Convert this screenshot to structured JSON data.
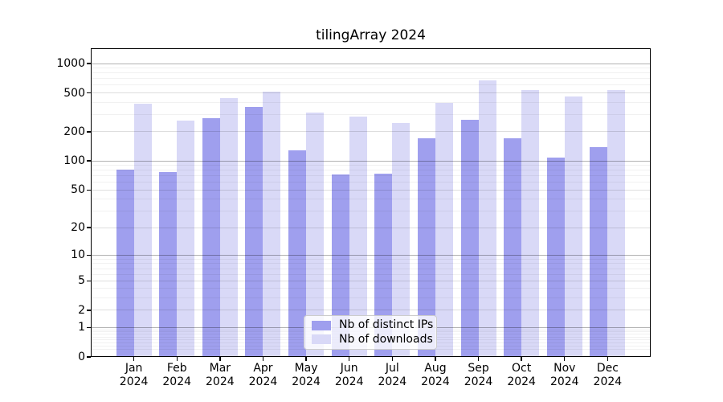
{
  "title": "tilingArray 2024",
  "legend": {
    "items": [
      {
        "label": "Nb of distinct IPs",
        "color_key": "ips"
      },
      {
        "label": "Nb of downloads",
        "color_key": "downloads"
      }
    ]
  },
  "colors": {
    "ips": "#9f9fee",
    "downloads": "#d9d9f7",
    "grid_power10": "rgba(0,0,0,0.30)",
    "grid_major": "rgba(0,0,0,0.13)",
    "grid_minor": "rgba(0,0,0,0.055)",
    "axis": "#000000"
  },
  "y_axis": {
    "ticks": [
      0,
      1,
      2,
      5,
      10,
      20,
      50,
      100,
      200,
      500,
      1000
    ],
    "minor_ticks": [
      0.2,
      0.3,
      0.4,
      0.5,
      0.6,
      0.7,
      0.8,
      0.9,
      3,
      4,
      6,
      7,
      8,
      9,
      30,
      40,
      60,
      70,
      80,
      90,
      300,
      400,
      600,
      700,
      800,
      900
    ]
  },
  "x_axis": {
    "months": [
      "Jan",
      "Feb",
      "Mar",
      "Apr",
      "May",
      "Jun",
      "Jul",
      "Aug",
      "Sep",
      "Oct",
      "Nov",
      "Dec"
    ],
    "year_label": "2024"
  },
  "chart_data": {
    "type": "bar",
    "title": "tilingArray 2024",
    "categories": [
      "Jan 2024",
      "Feb 2024",
      "Mar 2024",
      "Apr 2024",
      "May 2024",
      "Jun 2024",
      "Jul 2024",
      "Aug 2024",
      "Sep 2024",
      "Oct 2024",
      "Nov 2024",
      "Dec 2024"
    ],
    "series": [
      {
        "name": "Nb of distinct IPs",
        "values": [
          81,
          77,
          273,
          358,
          128,
          72,
          74,
          172,
          267,
          172,
          108,
          140
        ]
      },
      {
        "name": "Nb of downloads",
        "values": [
          385,
          260,
          442,
          515,
          313,
          284,
          248,
          398,
          672,
          531,
          463,
          531
        ]
      }
    ],
    "yscale": "log10(value+1)",
    "ylim": [
      0,
      1100
    ],
    "ytick_labels": [
      "0",
      "1",
      "2",
      "5",
      "10",
      "20",
      "50",
      "100",
      "200",
      "500",
      "1000"
    ],
    "grid": true,
    "legend_position": "lower center"
  }
}
